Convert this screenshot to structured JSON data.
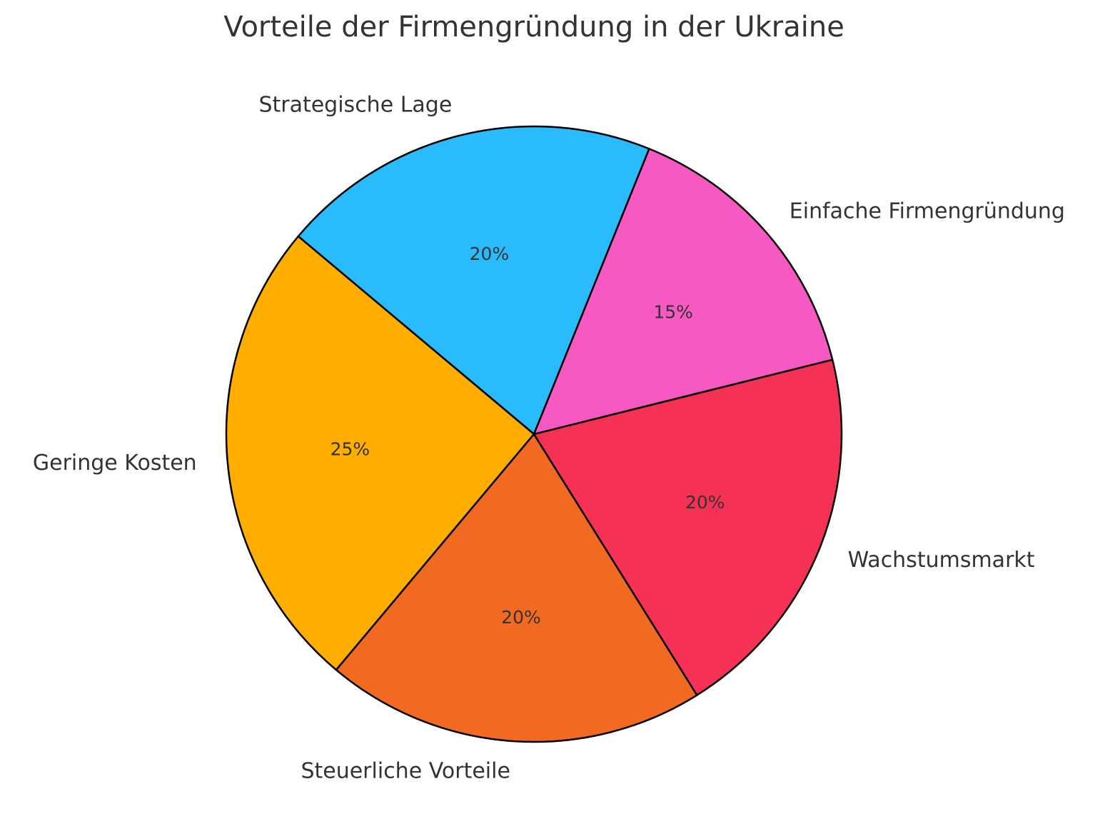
{
  "chart_data": {
    "type": "pie",
    "title": "Vorteile der Firmengründung in der Ukraine",
    "categories": [
      "Strategische Lage",
      "Geringe Kosten",
      "Steuerliche Vorteile",
      "Wachstumsmarkt",
      "Einfache Firmengründung"
    ],
    "values": [
      20,
      25,
      20,
      20,
      15
    ],
    "value_labels": [
      "20%",
      "25%",
      "20%",
      "20%",
      "15%"
    ],
    "colors": [
      "#29bbfc",
      "#ffae00",
      "#f26a22",
      "#f53155",
      "#f759c2"
    ]
  }
}
